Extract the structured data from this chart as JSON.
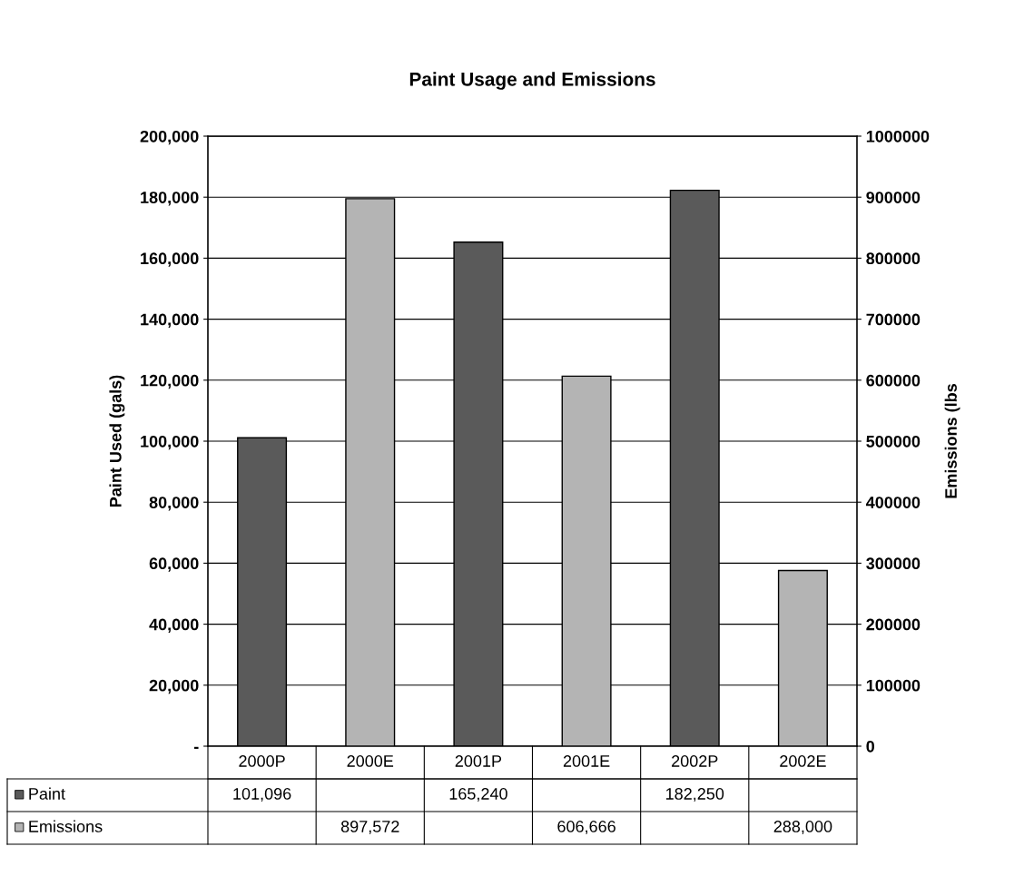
{
  "chart_data": {
    "type": "bar",
    "title": "Paint Usage and Emissions",
    "ylabel": "Paint Used (gals)",
    "y2label": "Emissions (lbs",
    "categories": [
      "2000P",
      "2000E",
      "2001P",
      "2001E",
      "2002P",
      "2002E"
    ],
    "series": [
      {
        "name": "Paint",
        "color": "#5a5a5a",
        "values": [
          101096,
          null,
          165240,
          null,
          182250,
          null
        ],
        "value_labels": [
          "101,096",
          null,
          "165,240",
          null,
          "182,250",
          null
        ]
      },
      {
        "name": "Emissions",
        "color": "#b4b4b4",
        "axis": "y2",
        "values": [
          null,
          897572,
          null,
          606666,
          null,
          288000
        ],
        "value_labels": [
          null,
          "897,572",
          null,
          "606,666",
          null,
          "288,000"
        ]
      }
    ],
    "ylim": [
      0,
      200000
    ],
    "yticks": [
      {
        "value": 0,
        "label": "-"
      },
      {
        "value": 20000,
        "label": "20,000"
      },
      {
        "value": 40000,
        "label": "40,000"
      },
      {
        "value": 60000,
        "label": "60,000"
      },
      {
        "value": 80000,
        "label": "80,000"
      },
      {
        "value": 100000,
        "label": "100,000"
      },
      {
        "value": 120000,
        "label": "120,000"
      },
      {
        "value": 140000,
        "label": "140,000"
      },
      {
        "value": 160000,
        "label": "160,000"
      },
      {
        "value": 180000,
        "label": "180,000"
      },
      {
        "value": 200000,
        "label": "200,000"
      }
    ],
    "y2lim": [
      0,
      1000000
    ],
    "y2ticks": [
      0,
      100000,
      200000,
      300000,
      400000,
      500000,
      600000,
      700000,
      800000,
      900000,
      1000000
    ],
    "grid": "y",
    "legend": "bottom"
  }
}
